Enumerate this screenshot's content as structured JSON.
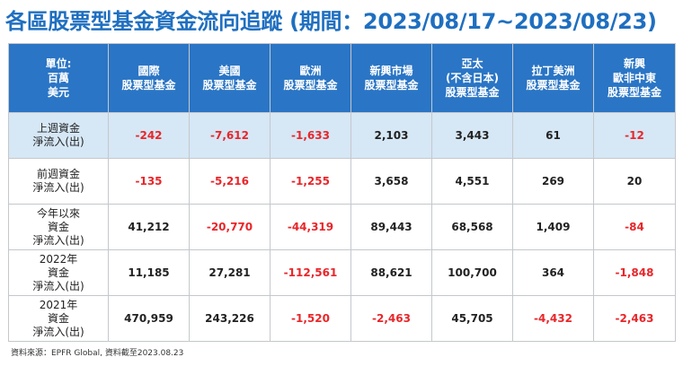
{
  "title": "各區股票型基金資金流向追蹤 (期間：2023/08/17~2023/08/23)",
  "header": {
    "unit": [
      "單位:",
      "百萬",
      "美元"
    ],
    "columns": [
      [
        "國際",
        "股票型基金"
      ],
      [
        "美國",
        "股票型基金"
      ],
      [
        "歐洲",
        "股票型基金"
      ],
      [
        "新興市場",
        "股票型基金"
      ],
      [
        "亞太",
        "(不含日本)",
        "股票型基金"
      ],
      [
        "拉丁美洲",
        "股票型基金"
      ],
      [
        "新興",
        "歐非中東",
        "股票型基金"
      ]
    ]
  },
  "rows": [
    {
      "label": [
        "上週資金",
        "淨流入(出)"
      ],
      "values": [
        "-242",
        "-7,612",
        "-1,633",
        "2,103",
        "3,443",
        "61",
        "-12"
      ]
    },
    {
      "label": [
        "前週資金",
        "淨流入(出)"
      ],
      "values": [
        "-135",
        "-5,216",
        "-1,255",
        "3,658",
        "4,551",
        "269",
        "20"
      ]
    },
    {
      "label": [
        "今年以來",
        "資金",
        "淨流入(出)"
      ],
      "values": [
        "41,212",
        "-20,770",
        "-44,319",
        "89,443",
        "68,568",
        "1,409",
        "-84"
      ]
    },
    {
      "label": [
        "2022年",
        "資金",
        "淨流入(出)"
      ],
      "values": [
        "11,185",
        "27,281",
        "-112,561",
        "88,621",
        "100,700",
        "364",
        "-1,848"
      ]
    },
    {
      "label": [
        "2021年",
        "資金",
        "淨流入(出)"
      ],
      "values": [
        "470,959",
        "243,226",
        "-1,520",
        "-2,463",
        "45,705",
        "-4,432",
        "-2,463"
      ]
    }
  ],
  "source": "資料來源：EPFR Global, 資料截至2023.08.23",
  "colors": {
    "title": "#1f6fc0",
    "header_bg": "#2a75c5",
    "highlight_row": "#d6e7f5",
    "negative": "#e8262a"
  }
}
